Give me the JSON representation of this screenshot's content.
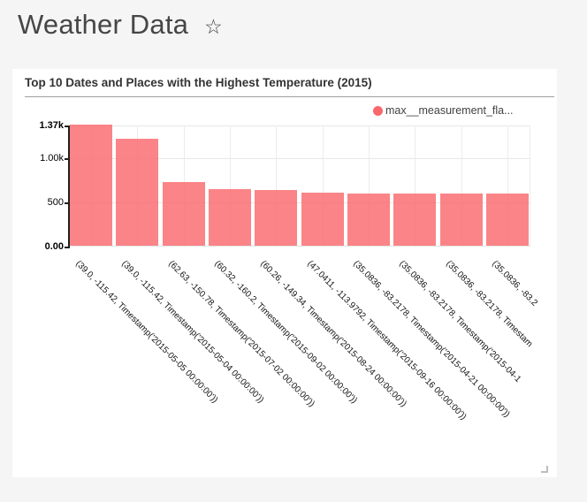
{
  "header": {
    "title": "Weather Data",
    "star_icon": "☆"
  },
  "card": {
    "title": "Top 10 Dates and Places with the Highest Temperature (2015)"
  },
  "legend": {
    "label": "max__measurement_fla..."
  },
  "colors": {
    "accent": "#f9696c",
    "page_background": "#f5f5f5",
    "card_background": "#ffffff"
  },
  "chart_data": {
    "type": "bar",
    "title": "Top 10 Dates and Places with the Highest Temperature (2015)",
    "legend_entries": [
      "max__measurement_fla..."
    ],
    "legend_position": "top-right",
    "grid": true,
    "bar_color": "#f9696c",
    "ylim": [
      0,
      1370
    ],
    "yticks": [
      {
        "label": "1.37k",
        "value": 1370,
        "bold": true
      },
      {
        "label": "1.00k",
        "value": 1000,
        "bold": false
      },
      {
        "label": "500",
        "value": 500,
        "bold": false
      },
      {
        "label": "0.00",
        "value": 0,
        "bold": true
      }
    ],
    "categories": [
      "(39.0, -115.42, Timestamp('2015-05-05 00:00:00'))",
      "(39.0, -115.42, Timestamp('2015-05-04 00:00:00'))",
      "(62.63, -150.78, Timestamp('2015-07-02 00:00:00'))",
      "(60.32, -160.2, Timestamp('2015-09-02 00:00:00'))",
      "(60.26, -149.34, Timestamp('2015-08-24 00:00:00'))",
      "(47.0411, -113.9792, Timestamp('2015-09-16 00:00:00'))",
      "(35.0836, -83.2178, Timestamp('2015-04-21 00:00:00'))",
      "(35.0836, -83.2178, Timestamp('2015-04-1",
      "(35.0836, -83.2178, Timestam",
      "(35.0836, -83.2"
    ],
    "series": [
      {
        "name": "max__measurement_fla...",
        "values": [
          1370,
          1210,
          725,
          645,
          635,
          605,
          595,
          595,
          595,
          595
        ]
      }
    ]
  }
}
